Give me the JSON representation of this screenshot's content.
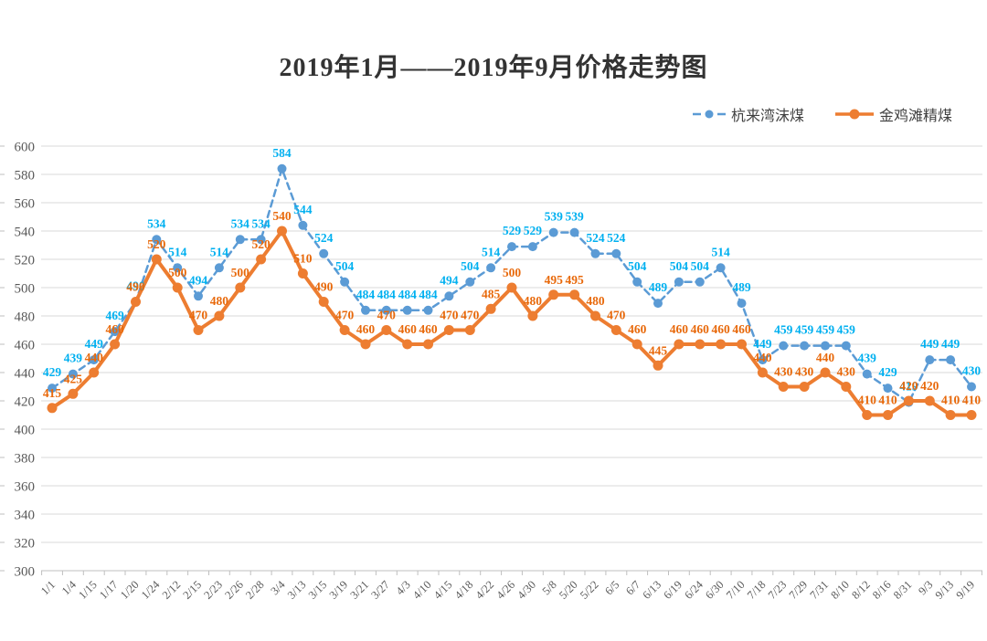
{
  "title": "2019年1月——2019年9月价格走势图",
  "colors": {
    "background": "#FFFFFF",
    "grid": "#D9D9D9",
    "axis_line": "#BFBFBF",
    "axis_text": "#595959",
    "title_text": "#333333",
    "series_blue": "#5B9BD5",
    "series_blue_label": "#00B0F0",
    "series_orange": "#ED7D31",
    "series_orange_label": "#E8690B"
  },
  "legend": {
    "items": [
      {
        "label": "杭来湾沫煤"
      },
      {
        "label": "金鸡滩精煤"
      }
    ]
  },
  "chart_data": {
    "type": "line",
    "title": "2019年1月——2019年9月价格走势图",
    "xlabel": "",
    "ylabel": "",
    "ylim": [
      300,
      600
    ],
    "y_tick_step": 20,
    "grid": true,
    "legend_position": "top-right",
    "data_labels": true,
    "categories": [
      "1/1",
      "1/4",
      "1/15",
      "1/17",
      "1/20",
      "1/24",
      "2/12",
      "2/15",
      "2/23",
      "2/26",
      "2/28",
      "3/4",
      "3/13",
      "3/15",
      "3/19",
      "3/21",
      "3/27",
      "4/3",
      "4/10",
      "4/15",
      "4/18",
      "4/22",
      "4/26",
      "4/30",
      "5/8",
      "5/20",
      "5/22",
      "6/5",
      "6/7",
      "6/13",
      "6/19",
      "6/24",
      "6/30",
      "7/10",
      "7/18",
      "7/23",
      "7/29",
      "7/31",
      "8/10",
      "8/12",
      "8/16",
      "8/31",
      "9/3",
      "9/13",
      "9/19"
    ],
    "series": [
      {
        "name": "杭来湾沫煤",
        "line_style": "dashed",
        "line_width": 2.5,
        "marker": "circle",
        "color": "#5B9BD5",
        "label_color": "#00B0F0",
        "values": [
          429,
          439,
          449,
          469,
          490,
          534,
          514,
          494,
          514,
          534,
          534,
          584,
          544,
          524,
          504,
          484,
          484,
          484,
          484,
          494,
          504,
          514,
          529,
          529,
          539,
          539,
          524,
          524,
          504,
          489,
          504,
          504,
          514,
          489,
          449,
          459,
          459,
          459,
          459,
          439,
          429,
          419,
          449,
          449,
          430
        ]
      },
      {
        "name": "金鸡滩精煤",
        "line_style": "solid",
        "line_width": 4,
        "marker": "circle",
        "color": "#ED7D31",
        "label_color": "#E8690B",
        "values": [
          415,
          425,
          440,
          460,
          490,
          520,
          500,
          470,
          480,
          500,
          520,
          540,
          510,
          490,
          470,
          460,
          470,
          460,
          460,
          470,
          470,
          485,
          500,
          480,
          495,
          495,
          480,
          470,
          460,
          445,
          460,
          460,
          460,
          460,
          440,
          430,
          430,
          440,
          430,
          410,
          410,
          420,
          420,
          410,
          410
        ]
      }
    ]
  }
}
